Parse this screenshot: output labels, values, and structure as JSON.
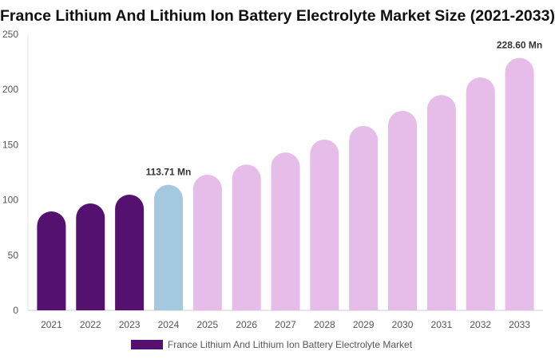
{
  "chart_data": {
    "type": "bar",
    "title": "France Lithium And Lithium Ion Battery Electrolyte Market Size (2021-2033)",
    "categories": [
      "2021",
      "2022",
      "2023",
      "2024",
      "2025",
      "2026",
      "2027",
      "2028",
      "2029",
      "2030",
      "2031",
      "2032",
      "2033"
    ],
    "series": [
      {
        "name": "France Lithium And Lithium Ion Battery Electrolyte Market",
        "values": [
          89.6,
          96.8,
          104.8,
          113.71,
          122.8,
          132.0,
          143.0,
          154.6,
          167.0,
          180.6,
          195.0,
          211.0,
          228.6
        ]
      }
    ],
    "data_labels": {
      "3": "113.71 Mn",
      "12": "228.60 Mn"
    },
    "ylim": [
      0,
      250
    ],
    "yticks": [
      0,
      50,
      100,
      150,
      200,
      250
    ],
    "grid": false,
    "legend": "bottom",
    "colors": {
      "historical": "#541170",
      "base_year": "#a4c9de",
      "forecast": "#e6bce8"
    }
  }
}
